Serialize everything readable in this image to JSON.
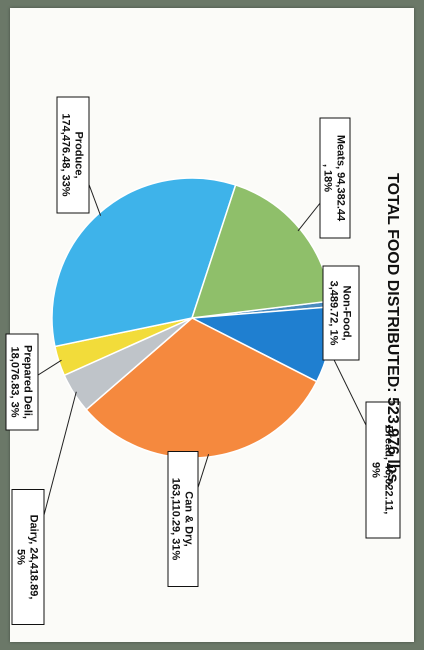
{
  "chart_data": {
    "type": "pie",
    "title": "TOTAL FOOD DISTRIBUTED:  523,976 lbs.",
    "slices": [
      {
        "label": "Non-Food,\n3,489.72, 1%",
        "value": 3489.72,
        "color": "#4a8bbf"
      },
      {
        "label": "Bread, 46,022.11,\n9%",
        "value": 46022.11,
        "color": "#1f7fd0"
      },
      {
        "label": "Can & Dry,\n163,110.29, 31%",
        "value": 163110.29,
        "color": "#f5893e"
      },
      {
        "label": "Dairy, 24,418.89,\n5%",
        "value": 24418.89,
        "color": "#bfc4c9"
      },
      {
        "label": "Prepared Deli,\n18,076.83, 3%",
        "value": 18076.83,
        "color": "#f2dc3a"
      },
      {
        "label": "Produce,\n174,476.48, 33%",
        "value": 174476.48,
        "color": "#3eb3ea"
      },
      {
        "label": "Meats, 94,382.44\n, 18%",
        "value": 94382.44,
        "color": "#8fbf6a"
      }
    ]
  }
}
